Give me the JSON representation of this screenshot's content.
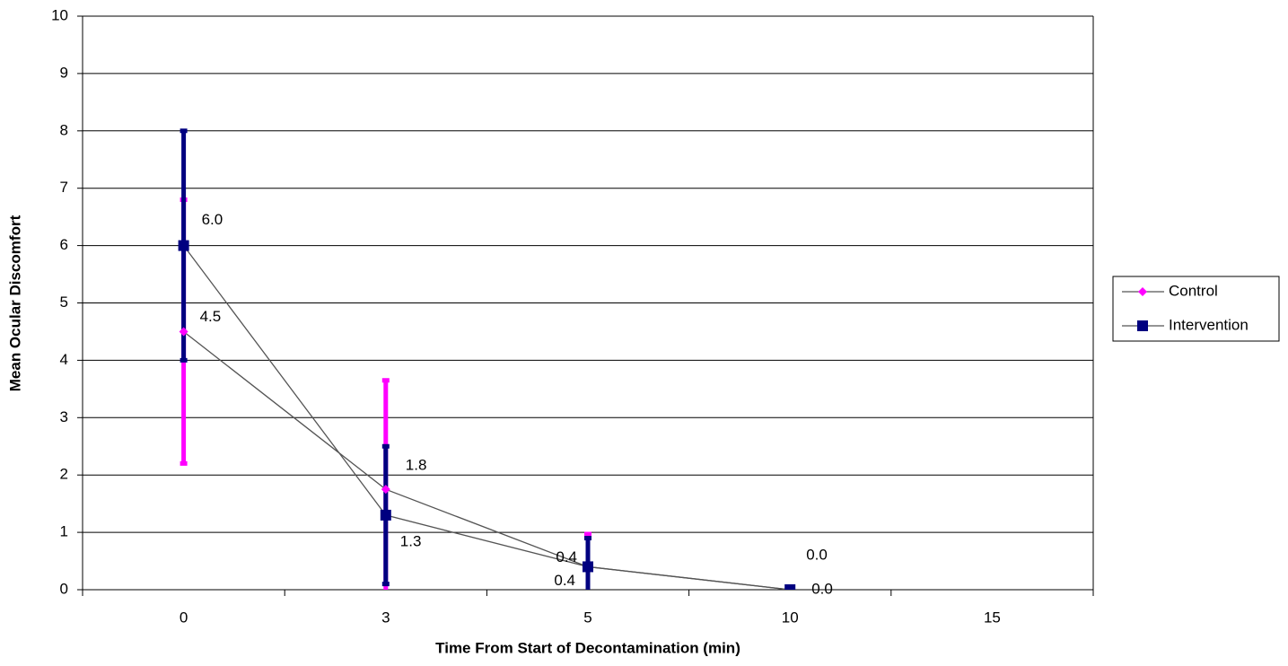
{
  "chart_data": {
    "type": "line",
    "y_label": "Mean Ocular Discomfort",
    "x_label": "Time From Start of Decontamination (min)",
    "categories": [
      "0",
      "3",
      "5",
      "10",
      "15"
    ],
    "series": [
      {
        "name": "Control",
        "color": "#ff00ff",
        "marker": "diamond",
        "values": [
          4.5,
          1.75,
          0.4,
          0.0,
          null
        ],
        "errors": [
          2.3,
          1.9,
          0.57,
          0,
          null
        ],
        "value_labels": [
          "4.5",
          "1.8",
          "0.4",
          "0.0",
          null
        ]
      },
      {
        "name": "Intervention",
        "color": "#000080",
        "marker": "square",
        "values": [
          6.0,
          1.3,
          0.4,
          0.0,
          null
        ],
        "errors": [
          2.0,
          1.2,
          0.5,
          0,
          null
        ],
        "value_labels": [
          "6.0",
          "1.3",
          "0.4",
          "0.0",
          null
        ]
      }
    ],
    "line_color": "#555555",
    "ylim": [
      0,
      10
    ],
    "yticks": [
      0,
      1,
      2,
      3,
      4,
      5,
      6,
      7,
      8,
      9,
      10
    ],
    "grid": true,
    "legend": "right"
  }
}
